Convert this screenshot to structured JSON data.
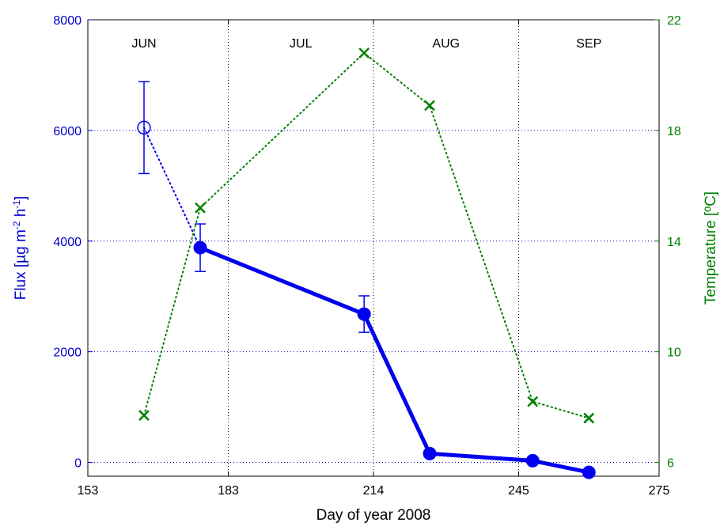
{
  "chart_data": {
    "type": "line",
    "xlabel": "Day of year 2008",
    "ylabel_left": "Flux [µg m⁻² h⁻¹]",
    "ylabel_left_parts": {
      "pre": "Flux [µg m",
      "sup1": "-2",
      "mid": " h",
      "sup2": "-1",
      "post": "]"
    },
    "ylabel_right": "Temperature [ºC]",
    "xlim": [
      153,
      275
    ],
    "ylim_left": [
      -250,
      8000
    ],
    "ylim_right": [
      5.5,
      22
    ],
    "xticks": [
      153,
      183,
      214,
      245,
      275
    ],
    "yticks_left": [
      0,
      2000,
      4000,
      6000,
      8000
    ],
    "yticks_right": [
      6,
      10,
      14,
      18,
      22
    ],
    "month_boundaries": [
      183,
      214,
      245
    ],
    "months": [
      {
        "label": "JUN",
        "x": 165
      },
      {
        "label": "JUL",
        "x": 198.5
      },
      {
        "label": "AUG",
        "x": 229.5
      },
      {
        "label": "SEP",
        "x": 260
      }
    ],
    "gridlines_left_y": [
      0,
      2000,
      4000,
      6000
    ],
    "grid": "dotted",
    "colors": {
      "flux": "#0000ee",
      "temperature": "#008000",
      "grid": "#0000cc",
      "axis_left": "#0000cc",
      "axis_right": "#008000"
    },
    "series": [
      {
        "axis": "left",
        "color": "#0000ee",
        "style": "solid-thick",
        "marker": "filled-circle",
        "x": [
          177,
          212,
          226,
          248,
          260
        ],
        "y": [
          3880,
          2680,
          160,
          30,
          -180
        ],
        "err": [
          430,
          330,
          0,
          0,
          0
        ]
      },
      {
        "axis": "left",
        "color": "#0000ee",
        "style": "dotted",
        "marker": "open-circle",
        "x": [
          165,
          177
        ],
        "y": [
          6050,
          3880
        ],
        "err": [
          830,
          0
        ]
      },
      {
        "axis": "right",
        "color": "#008000",
        "style": "dotted",
        "marker": "x",
        "x": [
          165,
          177,
          212,
          226,
          248,
          260
        ],
        "y": [
          7.7,
          15.2,
          20.8,
          18.9,
          8.2,
          7.6
        ]
      }
    ]
  }
}
